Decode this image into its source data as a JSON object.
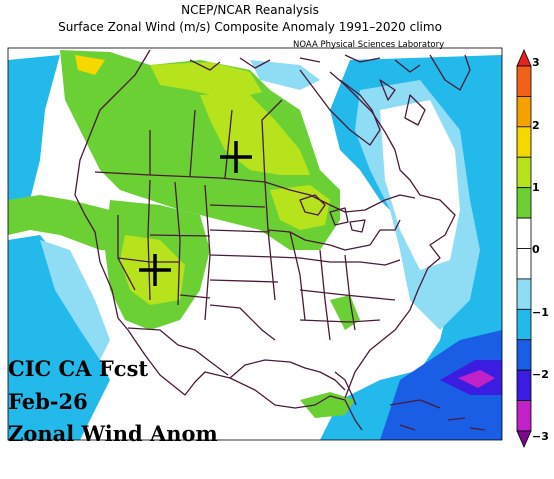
{
  "title_line1": "NCEP/NCAR Reanalysis",
  "title_line2": "Surface Zonal Wind (m/s) Composite Anomaly 1991–2020 climo",
  "credit": "NOAA Physical Sciences Laboratory",
  "overlay": [
    "CIC CA Fcst",
    "Feb-26",
    "Zonal Wind Anom"
  ],
  "colorbar": {
    "ticks": [
      "3",
      "2",
      "1",
      "0",
      "−1",
      "−2",
      "−3"
    ],
    "range": [
      -3,
      3
    ],
    "colors": [
      "#7a0a8c",
      "#c022c8",
      "#3a1de0",
      "#1a5ee6",
      "#23b9ea",
      "#8fdcf5",
      "#ffffff",
      "#ffffff",
      "#6bd034",
      "#b7e31c",
      "#f5d800",
      "#f5a100",
      "#f2611a",
      "#e5231c"
    ]
  },
  "markers": [
    "plus-marker-north-dakota",
    "plus-marker-arizona"
  ],
  "icons": [
    "cross-marker-icon"
  ]
}
